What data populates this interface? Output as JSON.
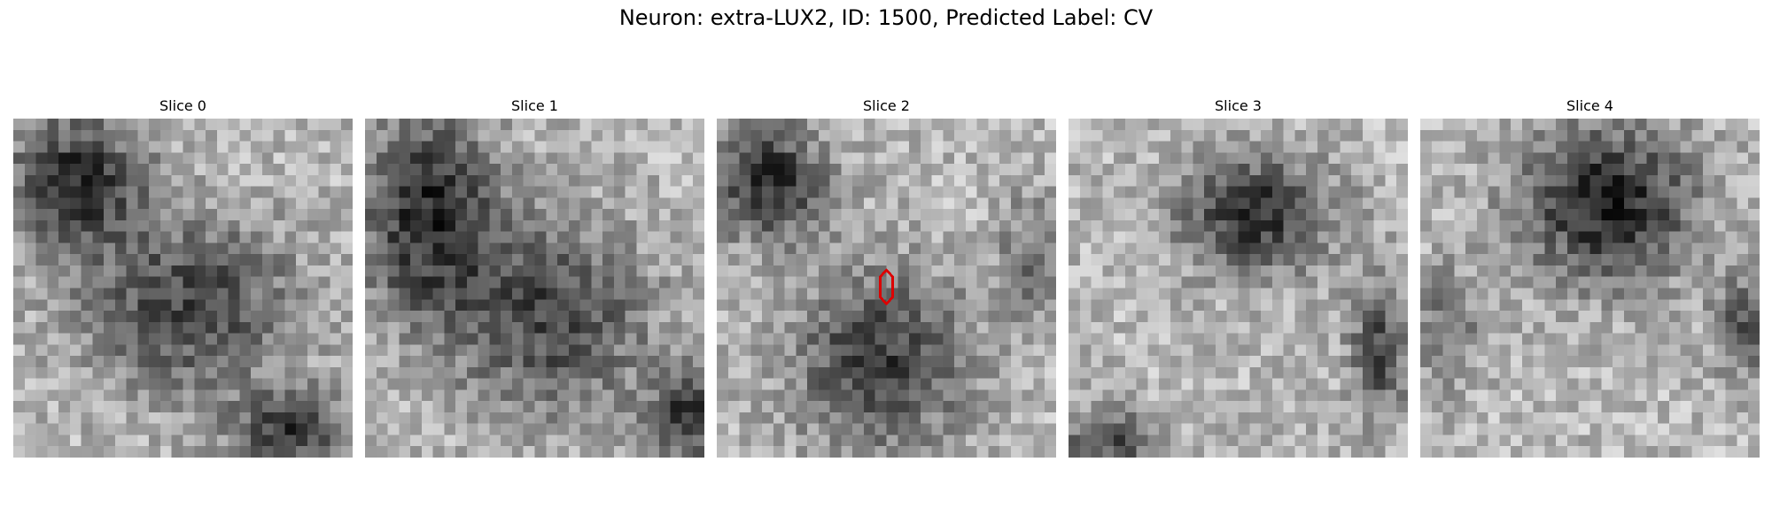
{
  "figure": {
    "title": "Neuron: extra-LUX2, ID: 1500, Predicted Label: CV"
  },
  "panels": [
    {
      "title": "Slice 0"
    },
    {
      "title": "Slice 1"
    },
    {
      "title": "Slice 2"
    },
    {
      "title": "Slice 3"
    },
    {
      "title": "Slice 4"
    }
  ],
  "colors": {
    "marker": "#dd0000",
    "background": "#ffffff"
  }
}
